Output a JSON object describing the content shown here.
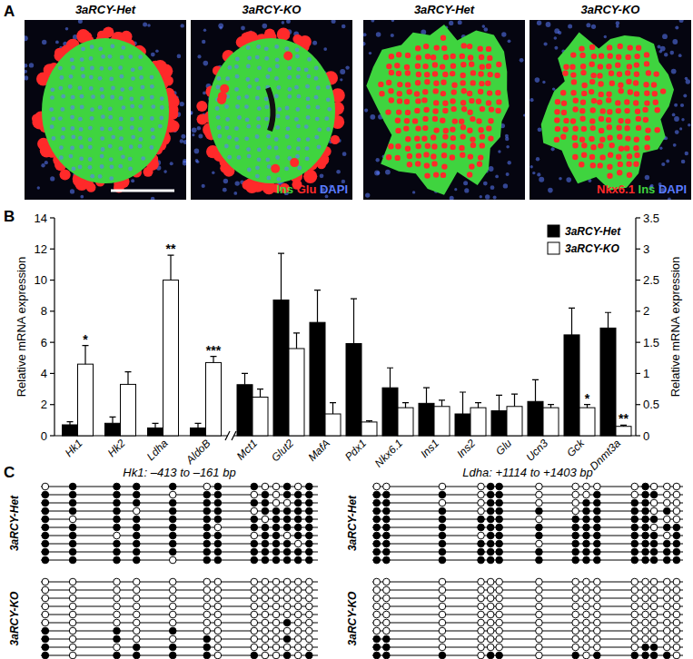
{
  "panel_labels": [
    "A",
    "B",
    "C"
  ],
  "panel_a": {
    "images": [
      {
        "label": "3aRCY-Het"
      },
      {
        "label": "3aRCY-KO",
        "stain_legend": [
          {
            "text": "Ins",
            "color": "#3fd43f"
          },
          {
            "text": "Glu",
            "color": "#ff2a2a"
          },
          {
            "text": "DAPI",
            "color": "#5b7cff"
          }
        ]
      },
      {
        "label": "3aRCY-Het"
      },
      {
        "label": "3aRCY-KO",
        "stain_legend": [
          {
            "text": "Nkx6.1",
            "color": "#ff2a2a"
          },
          {
            "text": "Ins",
            "color": "#3fd43f"
          },
          {
            "text": "DAPI",
            "color": "#5b7cff"
          }
        ]
      }
    ]
  },
  "chart_data": [
    {
      "type": "bar",
      "y_label": "Relative mRNA expression",
      "categories": [
        "Hk1",
        "Hk2",
        "Ldha",
        "AldoB"
      ],
      "series": [
        {
          "color": "#000000",
          "values": [
            0.7,
            0.8,
            0.5,
            0.5
          ],
          "errors": [
            0.2,
            0.4,
            0.3,
            0.3
          ]
        },
        {
          "color": "#ffffff",
          "values": [
            4.6,
            3.3,
            10.0,
            4.7
          ],
          "errors": [
            1.2,
            0.8,
            1.6,
            0.4
          ],
          "significance": [
            "*",
            null,
            "**",
            "***"
          ]
        }
      ],
      "ylim": [
        0,
        14
      ],
      "yticks": [
        0,
        2,
        4,
        6,
        8,
        10,
        12,
        14
      ]
    },
    {
      "type": "bar",
      "y_label": "Relative mRNA expression",
      "categories": [
        "Mct1",
        "Glut2",
        "MafA",
        "Pdx1",
        "Nkx6.1",
        "Ins1",
        "Ins2",
        "Glu",
        "Ucn3",
        "Gck",
        "Dnmt3a"
      ],
      "series": [
        {
          "name": "3aRCY-Het",
          "color": "#000000",
          "values": [
            0.82,
            2.18,
            1.82,
            1.48,
            0.77,
            0.52,
            0.35,
            0.4,
            0.55,
            1.62,
            1.73
          ],
          "errors": [
            0.18,
            0.75,
            0.52,
            0.72,
            0.32,
            0.25,
            0.35,
            0.25,
            0.35,
            0.43,
            0.25
          ]
        },
        {
          "name": "3aRCY-KO",
          "color": "#ffffff",
          "values": [
            0.62,
            1.4,
            0.35,
            0.22,
            0.45,
            0.47,
            0.45,
            0.47,
            0.45,
            0.45,
            0.15
          ],
          "errors": [
            0.13,
            0.25,
            0.18,
            0.02,
            0.08,
            0.1,
            0.08,
            0.2,
            0.05,
            0.05,
            0.02
          ],
          "significance": [
            null,
            null,
            null,
            null,
            null,
            null,
            null,
            null,
            null,
            "*",
            "**"
          ]
        }
      ],
      "ylim": [
        0,
        3.5
      ],
      "yticks": [
        0,
        0.5,
        1,
        1.5,
        2,
        2.5,
        3,
        3.5
      ],
      "legend": "top-right"
    }
  ],
  "panel_c": {
    "plots": [
      {
        "title": "Hk1: –413 to –161 bp",
        "range_bp": [
          -413,
          -161
        ],
        "cpg_positions_bp": [
          -409,
          -384,
          -344,
          -326,
          -293,
          -262,
          -252,
          -219,
          -209,
          -199,
          -189,
          -179,
          -169
        ],
        "groups": [
          {
            "label": "3aRCY-Het",
            "rows": [
              [
                0,
                1,
                1,
                1,
                1,
                0,
                1,
                1,
                0,
                0,
                1,
                0,
                1
              ],
              [
                1,
                1,
                1,
                1,
                0,
                1,
                1,
                0,
                1,
                0,
                1,
                1,
                1
              ],
              [
                1,
                1,
                1,
                1,
                1,
                1,
                1,
                1,
                1,
                0,
                0,
                1,
                1
              ],
              [
                1,
                1,
                1,
                0,
                1,
                1,
                1,
                0,
                1,
                1,
                1,
                1,
                1
              ],
              [
                1,
                0,
                1,
                1,
                1,
                1,
                1,
                1,
                0,
                1,
                1,
                1,
                1
              ],
              [
                1,
                1,
                1,
                1,
                1,
                1,
                0,
                1,
                1,
                1,
                1,
                1,
                1
              ],
              [
                1,
                1,
                0,
                1,
                1,
                1,
                1,
                0,
                1,
                1,
                0,
                1,
                1
              ],
              [
                1,
                1,
                1,
                1,
                1,
                1,
                1,
                1,
                1,
                1,
                1,
                0,
                1
              ],
              [
                1,
                1,
                1,
                1,
                1,
                1,
                1,
                1,
                1,
                1,
                1,
                1,
                1
              ],
              [
                1,
                1,
                1,
                1,
                0,
                1,
                1,
                1,
                1,
                1,
                1,
                1,
                1
              ]
            ]
          },
          {
            "label": "3aRCY-KO",
            "rows": [
              [
                0,
                0,
                0,
                0,
                0,
                0,
                0,
                0,
                0,
                0,
                0,
                0,
                0
              ],
              [
                0,
                0,
                0,
                0,
                0,
                0,
                0,
                0,
                0,
                0,
                0,
                0,
                0
              ],
              [
                0,
                0,
                0,
                0,
                0,
                0,
                0,
                0,
                0,
                0,
                0,
                0,
                0
              ],
              [
                0,
                0,
                0,
                0,
                0,
                0,
                0,
                0,
                0,
                0,
                0,
                0,
                0
              ],
              [
                0,
                0,
                0,
                0,
                0,
                0,
                0,
                0,
                0,
                0,
                0,
                0,
                0
              ],
              [
                0,
                0,
                0,
                0,
                0,
                0,
                0,
                0,
                0,
                0,
                1,
                0,
                0
              ],
              [
                1,
                0,
                1,
                0,
                1,
                0,
                0,
                0,
                0,
                0,
                0,
                0,
                0
              ],
              [
                1,
                0,
                1,
                0,
                0,
                1,
                0,
                0,
                0,
                0,
                1,
                0,
                0
              ],
              [
                1,
                0,
                0,
                1,
                1,
                1,
                0,
                0,
                0,
                0,
                0,
                0,
                0
              ],
              [
                1,
                0,
                1,
                1,
                1,
                1,
                0,
                1,
                0,
                0,
                1,
                0,
                1
              ]
            ]
          }
        ]
      },
      {
        "title": "Ldha: +1114 to +1403 bp",
        "range_bp": [
          1114,
          1403
        ],
        "cpg_positions_bp": [
          1118,
          1127,
          1179,
          1215,
          1224,
          1232,
          1269,
          1303,
          1313,
          1323,
          1358,
          1368,
          1376,
          1388,
          1397
        ],
        "groups": [
          {
            "label": "3aRCY-Het",
            "rows": [
              [
                0,
                0,
                0,
                0,
                1,
                1,
                0,
                0,
                0,
                0,
                0,
                1,
                0,
                0,
                0
              ],
              [
                1,
                1,
                1,
                0,
                1,
                1,
                0,
                0,
                0,
                1,
                0,
                1,
                1,
                0,
                0
              ],
              [
                1,
                1,
                0,
                0,
                1,
                1,
                0,
                0,
                1,
                1,
                1,
                1,
                0,
                0,
                0
              ],
              [
                1,
                1,
                1,
                0,
                1,
                1,
                1,
                0,
                1,
                1,
                1,
                1,
                0,
                1,
                0
              ],
              [
                1,
                1,
                1,
                1,
                1,
                1,
                0,
                1,
                1,
                1,
                1,
                1,
                1,
                0,
                0
              ],
              [
                1,
                1,
                1,
                1,
                1,
                1,
                1,
                1,
                1,
                1,
                1,
                1,
                0,
                1,
                1
              ],
              [
                1,
                1,
                1,
                0,
                1,
                1,
                1,
                1,
                1,
                1,
                1,
                1,
                1,
                0,
                1
              ],
              [
                1,
                1,
                1,
                1,
                1,
                1,
                0,
                1,
                1,
                1,
                1,
                1,
                1,
                1,
                1
              ],
              [
                1,
                1,
                1,
                1,
                1,
                1,
                1,
                1,
                1,
                1,
                1,
                1,
                1,
                1,
                1
              ],
              [
                1,
                1,
                1,
                1,
                1,
                1,
                1,
                1,
                1,
                1,
                1,
                1,
                1,
                1,
                1
              ]
            ]
          },
          {
            "label": "3aRCY-KO",
            "rows": [
              [
                0,
                0,
                0,
                0,
                0,
                0,
                0,
                0,
                0,
                0,
                0,
                0,
                0,
                0,
                0
              ],
              [
                0,
                0,
                0,
                0,
                0,
                0,
                0,
                0,
                0,
                0,
                0,
                0,
                0,
                0,
                0
              ],
              [
                0,
                0,
                0,
                0,
                0,
                0,
                0,
                0,
                0,
                0,
                0,
                0,
                0,
                0,
                0
              ],
              [
                0,
                0,
                0,
                0,
                0,
                0,
                0,
                0,
                0,
                0,
                0,
                0,
                0,
                0,
                0
              ],
              [
                0,
                0,
                0,
                0,
                0,
                0,
                0,
                0,
                0,
                0,
                0,
                0,
                0,
                0,
                0
              ],
              [
                0,
                0,
                0,
                0,
                0,
                0,
                0,
                0,
                0,
                0,
                0,
                0,
                0,
                0,
                0
              ],
              [
                0,
                0,
                0,
                0,
                0,
                0,
                0,
                0,
                0,
                0,
                0,
                0,
                0,
                0,
                0
              ],
              [
                1,
                1,
                0,
                0,
                0,
                0,
                0,
                0,
                0,
                0,
                0,
                0,
                0,
                0,
                0
              ],
              [
                1,
                1,
                0,
                0,
                0,
                0,
                0,
                0,
                0,
                0,
                0,
                1,
                1,
                0,
                0
              ],
              [
                1,
                1,
                1,
                0,
                1,
                1,
                0,
                1,
                0,
                1,
                1,
                1,
                1,
                1,
                0
              ]
            ]
          }
        ]
      }
    ]
  }
}
